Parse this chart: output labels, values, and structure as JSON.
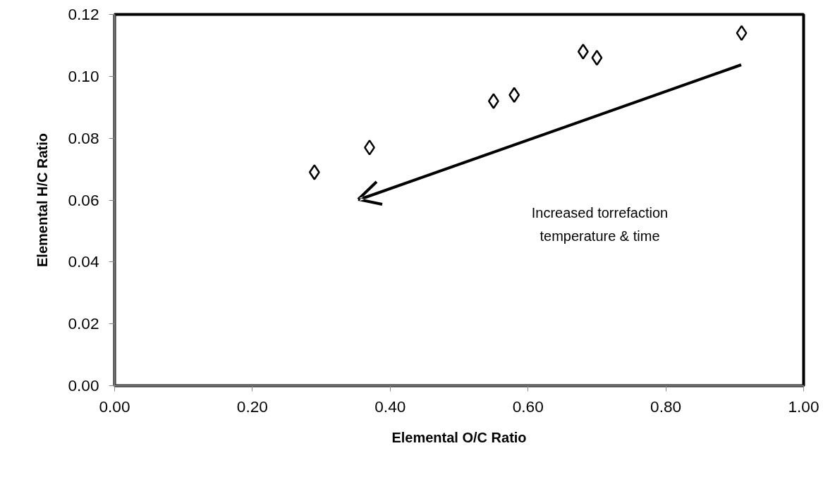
{
  "chart_data": {
    "type": "scatter",
    "xlabel": "Elemental O/C Ratio",
    "ylabel": "Elemental H/C Ratio",
    "x": [
      0.29,
      0.37,
      0.55,
      0.58,
      0.68,
      0.7,
      0.91
    ],
    "series": [
      {
        "color": "#000000",
        "values": [
          0.069,
          0.077,
          0.092,
          0.094,
          0.108,
          0.106,
          0.114
        ]
      }
    ],
    "marker": "diamond",
    "grid": false,
    "xlim": [
      0,
      1
    ],
    "ylim": [
      0,
      0.12
    ],
    "xticks": [
      {
        "value": 0,
        "label": "0.00"
      },
      {
        "value": 0.2,
        "label": "0.20"
      },
      {
        "value": 0.4,
        "label": "0.40"
      },
      {
        "value": 0.6,
        "label": "0.60"
      },
      {
        "value": 0.8,
        "label": "0.80"
      },
      {
        "value": 1,
        "label": "1.00"
      }
    ],
    "yticks": [
      {
        "value": 0,
        "label": "0.00"
      },
      {
        "value": 0.02,
        "label": "0.02"
      },
      {
        "value": 0.04,
        "label": "0.04"
      },
      {
        "value": 0.06,
        "label": "0.06"
      },
      {
        "value": 0.08,
        "label": "0.08"
      },
      {
        "value": 0.1,
        "label": "0.10"
      },
      {
        "value": 0.12,
        "label": "0.12"
      }
    ],
    "annotations": [
      "Increased torrefaction\ntemperature & time"
    ]
  }
}
